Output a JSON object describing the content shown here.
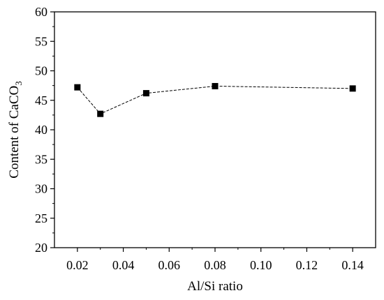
{
  "chart_data": {
    "type": "line",
    "title": "",
    "xlabel": "Al/Si ratio",
    "ylabel": {
      "prefix": "Content of CaCO",
      "subscript": "3"
    },
    "xlim": [
      0.01,
      0.15
    ],
    "ylim": [
      20,
      60
    ],
    "xticks": [
      0.02,
      0.04,
      0.06,
      0.08,
      0.1,
      0.12,
      0.14
    ],
    "xtick_labels": [
      "0.02",
      "0.04",
      "0.06",
      "0.08",
      "0.10",
      "0.12",
      "0.14"
    ],
    "yticks": [
      20,
      25,
      30,
      35,
      40,
      45,
      50,
      55,
      60
    ],
    "ytick_labels": [
      "20",
      "25",
      "30",
      "35",
      "40",
      "45",
      "50",
      "55",
      "60"
    ],
    "grid": false,
    "legend": "none",
    "series": [
      {
        "marker": "square",
        "line_style": "dashed",
        "color": "#000000",
        "x": [
          0.02,
          0.03,
          0.05,
          0.08,
          0.14
        ],
        "y": [
          47.2,
          42.7,
          46.2,
          47.4,
          47.0
        ]
      }
    ]
  }
}
